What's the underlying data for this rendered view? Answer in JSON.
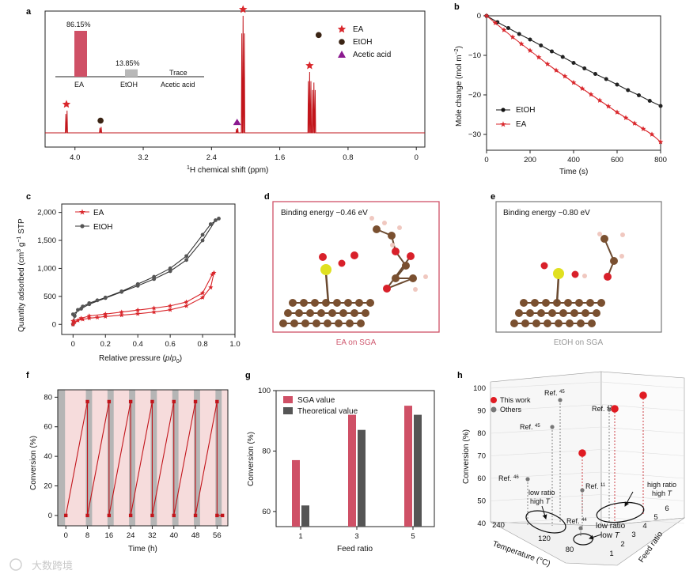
{
  "panels": {
    "a": "a",
    "b": "b",
    "c": "c",
    "d": "d",
    "e": "e",
    "f": "f",
    "g": "g",
    "h": "h"
  },
  "colors": {
    "ea": "#d9262b",
    "etoh": "#222222",
    "acetic": "#8b1a8f",
    "sga_bar": "#cf5066",
    "theo_bar": "#555555",
    "pink_band": "#f6dcdc",
    "gray_band": "#b5b5b5"
  },
  "chart_data": [
    {
      "panel": "a",
      "type": "line",
      "xlabel": "1H chemical shift (ppm)",
      "x_ticks": [
        "4.0",
        "3.2",
        "2.4",
        "1.6",
        "0.8",
        "0"
      ],
      "xlim": [
        4.35,
        -0.1
      ],
      "peaks": [
        {
          "ppm": 4.1,
          "height": 0.19,
          "marker": "EA"
        },
        {
          "ppm": 3.7,
          "height": 0.05,
          "marker": "EtOH"
        },
        {
          "ppm": 2.1,
          "height": 0.04,
          "marker": "Acetic acid"
        },
        {
          "ppm": 2.03,
          "height": 1.0,
          "marker": "EA"
        },
        {
          "ppm": 1.25,
          "height": 0.52,
          "marker": "EA"
        },
        {
          "ppm": 1.2,
          "height": 0.43,
          "marker": "EtOH"
        }
      ],
      "legend": [
        "EA",
        "EtOH",
        "Acetic acid"
      ],
      "inset": {
        "categories": [
          "EA",
          "EtOH",
          "Acetic acid"
        ],
        "values": [
          86.15,
          13.85,
          0
        ],
        "labels": [
          "86.15%",
          "13.85%",
          "Trace"
        ]
      }
    },
    {
      "panel": "b",
      "type": "line",
      "xlabel": "Time (s)",
      "ylabel": "Mole change (mol m−2)",
      "x_ticks": [
        "0",
        "200",
        "400",
        "600",
        "800"
      ],
      "y_ticks": [
        "0",
        "−10",
        "−20",
        "−30"
      ],
      "xlim": [
        0,
        800
      ],
      "ylim": [
        -34,
        0
      ],
      "series": [
        {
          "name": "EtOH",
          "x": [
            0,
            50,
            100,
            150,
            200,
            250,
            300,
            350,
            400,
            450,
            500,
            550,
            600,
            650,
            700,
            750,
            800
          ],
          "y": [
            0,
            -1.6,
            -3.1,
            -4.6,
            -6.0,
            -7.5,
            -9.0,
            -10.4,
            -11.9,
            -13.3,
            -14.7,
            -16.0,
            -17.4,
            -18.8,
            -20.1,
            -21.5,
            -22.8
          ]
        },
        {
          "name": "EA",
          "x": [
            0,
            40,
            80,
            120,
            160,
            200,
            240,
            280,
            320,
            360,
            400,
            440,
            480,
            520,
            560,
            600,
            640,
            680,
            720,
            760,
            800
          ],
          "y": [
            0,
            -1.8,
            -3.6,
            -5.4,
            -7.1,
            -8.8,
            -10.5,
            -12.2,
            -13.8,
            -15.3,
            -16.9,
            -18.4,
            -19.9,
            -21.4,
            -22.9,
            -24.4,
            -25.8,
            -27.2,
            -28.6,
            -30.0,
            -31.9
          ]
        }
      ]
    },
    {
      "panel": "c",
      "type": "line",
      "xlabel": "Relative pressure (p/p0)",
      "ylabel": "Quantity adsorbed (cm3 g−1 STP)",
      "x_ticks": [
        "0",
        "0.2",
        "0.4",
        "0.6",
        "0.8",
        "1.0"
      ],
      "y_ticks": [
        "0",
        "500",
        "1,000",
        "1,500",
        "2,000"
      ],
      "xlim": [
        -0.07,
        1.0
      ],
      "ylim": [
        -180,
        2150
      ],
      "series": [
        {
          "name": "EtOH",
          "x": [
            0.0,
            0.01,
            0.03,
            0.06,
            0.1,
            0.15,
            0.2,
            0.3,
            0.4,
            0.5,
            0.6,
            0.7,
            0.8,
            0.85,
            0.9,
            0.88,
            0.8,
            0.7,
            0.6,
            0.5,
            0.4,
            0.3,
            0.2,
            0.1,
            0.05,
            0.0
          ],
          "y": [
            0,
            150,
            260,
            320,
            380,
            430,
            480,
            590,
            720,
            850,
            1000,
            1220,
            1600,
            1790,
            1890,
            1860,
            1500,
            1150,
            950,
            810,
            690,
            580,
            470,
            360,
            280,
            180
          ]
        },
        {
          "name": "EA",
          "x": [
            0.0,
            0.01,
            0.03,
            0.06,
            0.1,
            0.15,
            0.2,
            0.3,
            0.4,
            0.5,
            0.6,
            0.7,
            0.8,
            0.85,
            0.87,
            0.86,
            0.8,
            0.7,
            0.6,
            0.5,
            0.4,
            0.3,
            0.2,
            0.1,
            0.05,
            0.0
          ],
          "y": [
            0,
            40,
            70,
            90,
            110,
            125,
            140,
            165,
            190,
            220,
            260,
            330,
            480,
            660,
            920,
            890,
            560,
            400,
            330,
            290,
            255,
            220,
            185,
            150,
            110,
            60
          ]
        }
      ]
    },
    {
      "panel": "f",
      "type": "line",
      "xlabel": "Time (h)",
      "ylabel": "Conversion (%)",
      "x_ticks": [
        "0",
        "8",
        "16",
        "24",
        "32",
        "40",
        "48",
        "56"
      ],
      "y_ticks": [
        "0",
        "20",
        "40",
        "60",
        "80"
      ],
      "xlim": [
        -3,
        60
      ],
      "ylim": [
        -7,
        85
      ],
      "series": [
        {
          "name": "Conversion",
          "x": [
            0,
            8,
            8,
            16,
            16,
            24,
            24,
            32,
            32,
            40,
            40,
            48,
            48,
            56,
            56,
            58
          ],
          "y": [
            0,
            77,
            0,
            77,
            0,
            77,
            0,
            77,
            0,
            77,
            0,
            77,
            0,
            77,
            0,
            0
          ]
        }
      ]
    },
    {
      "panel": "g",
      "type": "bar",
      "xlabel": "Feed ratio",
      "ylabel": "Conversion (%)",
      "categories": [
        "1",
        "3",
        "5"
      ],
      "y_ticks": [
        "60",
        "80",
        "100"
      ],
      "ylim": [
        55,
        100
      ],
      "series": [
        {
          "name": "SGA value",
          "values": [
            77,
            92,
            95
          ]
        },
        {
          "name": "Theoretical value",
          "values": [
            62,
            87,
            92
          ]
        }
      ]
    },
    {
      "panel": "h",
      "type": "scatter",
      "xlabel": "Temperature (°C)",
      "ylabel": "Conversion (%)",
      "zlabel": "Feed ratio",
      "legend": [
        "This work",
        "Others"
      ],
      "refs": [
        "Ref. 45",
        "Ref. 47",
        "Ref. 45",
        "Ref. 46",
        "Ref. 11",
        "Ref. 44"
      ]
    }
  ],
  "legend_a": {
    "ea": "EA",
    "etoh": "EtOH",
    "acid": "Acetic acid"
  },
  "inset_a": {
    "pct1": "86.15%",
    "pct2": "13.85%",
    "pct3": "Trace",
    "cat1": "EA",
    "cat2": "EtOH",
    "cat3": "Acetic acid"
  },
  "axis_a": {
    "label": "H chemical shift (ppm)",
    "sup": "1"
  },
  "axis_b": {
    "xlabel": "Time (s)",
    "ylabel": "Mole change (mol m",
    "ysup": "−2",
    "yend": ")",
    "leg1": "EtOH",
    "leg2": "EA"
  },
  "axis_c": {
    "xlabel": "Relative pressure (",
    "xp": "p",
    "xslash": "/",
    "xp0": "p",
    "x0": "0",
    "xend": ")",
    "ylabel": "Quantity adsorbed (cm",
    "ysup1": "3",
    "yg": " g",
    "ysup2": "−1",
    "ystp": " STP",
    "leg1": "EA",
    "leg2": "EtOH"
  },
  "panel_d": {
    "binding": "Binding energy −0.46 eV",
    "caption": "EA on SGA"
  },
  "panel_e": {
    "binding": "Binding energy −0.80 eV",
    "caption": "EtOH on SGA"
  },
  "axis_f": {
    "xlabel": "Time (h)",
    "ylabel": "Conversion (%)"
  },
  "axis_g": {
    "xlabel": "Feed ratio",
    "ylabel": "Conversion (%)",
    "leg1": "SGA value",
    "leg2": "Theoretical value"
  },
  "axis_h": {
    "ylabel": "Conversion (%)",
    "xlabel": "Temperature (°C)",
    "zlabel": "Feed ratio",
    "leg1": "This work",
    "leg2": "Others",
    "z_ticks": [
      "100",
      "90",
      "80",
      "70",
      "60",
      "50",
      "40"
    ],
    "t_ticks": [
      "240",
      "120",
      "80"
    ],
    "f_ticks": [
      "1",
      "2",
      "3",
      "4",
      "5",
      "6"
    ],
    "ref45a": "Ref. ",
    "ref45a_n": "45",
    "ref47": "Ref. ",
    "ref47_n": "47",
    "ref45b": "Ref. ",
    "ref45b_n": "45",
    "ref46": "Ref. ",
    "ref46_n": "46",
    "ref11": "Ref. ",
    "ref11_n": "11",
    "ref44": "Ref. ",
    "ref44_n": "44",
    "hi1": "high ratio",
    "hi2": "high ",
    "hiT": "T",
    "lo1": "low ratio",
    "lo2": "high ",
    "loT": "T",
    "ll1": "low ratio",
    "ll2": "low ",
    "llT": "T"
  },
  "watermark": "大数跨境"
}
